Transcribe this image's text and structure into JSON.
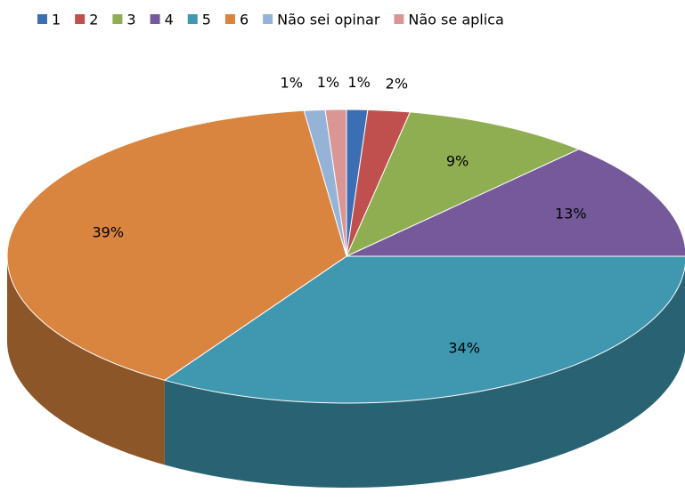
{
  "chart_data": {
    "type": "pie",
    "categories": [
      "1",
      "2",
      "3",
      "4",
      "5",
      "6",
      "Não sei opinar",
      "Não se aplica"
    ],
    "values": [
      1,
      2,
      9,
      13,
      34,
      39,
      1,
      1
    ],
    "value_labels": [
      "1%",
      "2%",
      "9%",
      "13%",
      "34%",
      "39%",
      "1%",
      "1%"
    ],
    "colors": [
      "#3c6eb4",
      "#c0504d",
      "#8fae52",
      "#76599a",
      "#3f97b0",
      "#d9843f",
      "#95b3d7",
      "#d99694"
    ],
    "legend": "top"
  }
}
